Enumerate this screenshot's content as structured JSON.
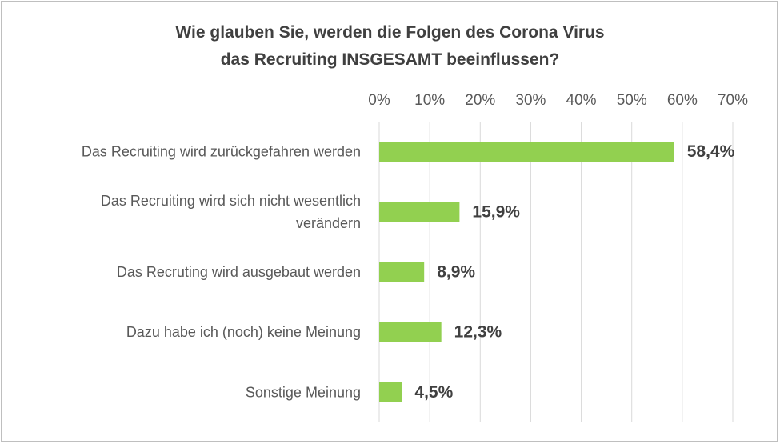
{
  "chart_data": {
    "type": "bar",
    "orientation": "horizontal",
    "title": [
      "Wie glauben Sie, werden die Folgen des Corona Virus",
      "das Recruiting INSGESAMT beeinflussen?"
    ],
    "categories": [
      [
        "Das Recruiting wird zurückgefahren werden"
      ],
      [
        "Das Recruiting wird sich nicht wesentlich",
        "verändern"
      ],
      [
        "Das Recruting wird ausgebaut werden"
      ],
      [
        "Dazu habe ich (noch) keine Meinung"
      ],
      [
        "Sonstige Meinung"
      ]
    ],
    "values": [
      58.4,
      15.9,
      8.9,
      12.3,
      4.5
    ],
    "data_labels": [
      "58,4%",
      "15,9%",
      "8,9%",
      "12,3%",
      "4,5%"
    ],
    "x_ticks": [
      "0%",
      "10%",
      "20%",
      "30%",
      "40%",
      "50%",
      "60%",
      "70%"
    ],
    "xlim": [
      0,
      70
    ],
    "x_axis_position": "top",
    "gridlines": "vertical",
    "bar_color": "#92d050",
    "legend": "none"
  }
}
